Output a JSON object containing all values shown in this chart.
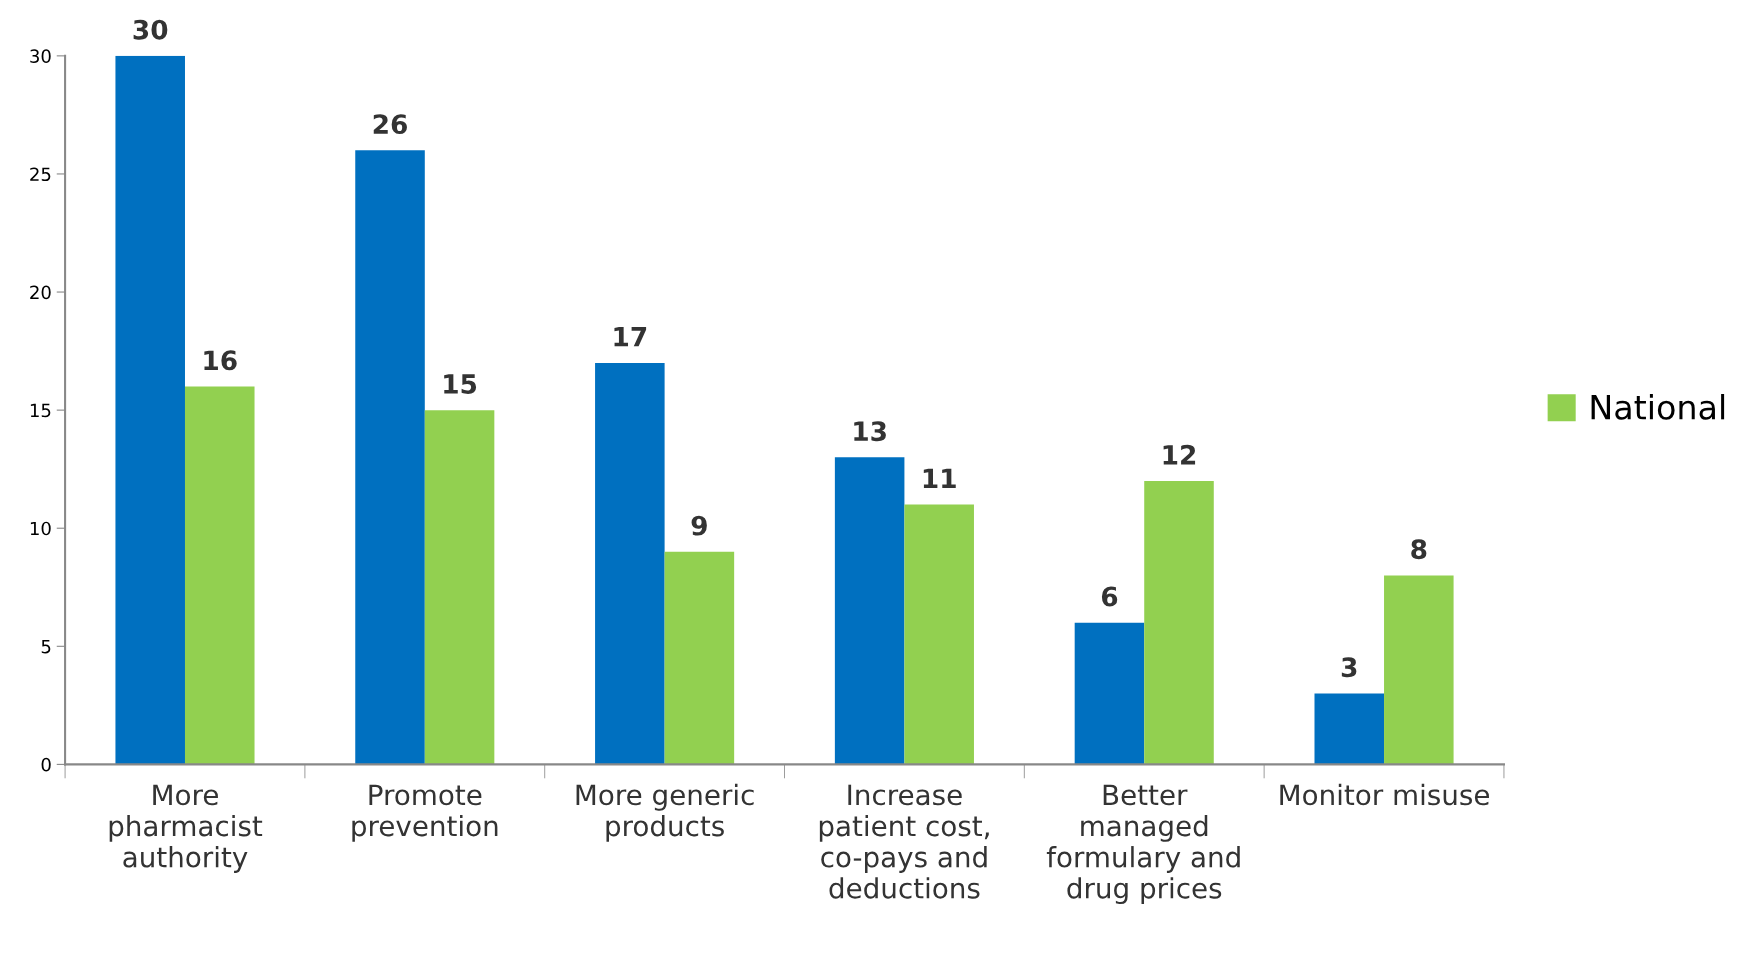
{
  "chart_data": {
    "type": "bar",
    "categories": [
      "More\npharmacist\nauthority",
      "Promote\nprevention",
      "More generic\nproducts",
      "Increase\npatient cost,\nco-pays and\ndeductions",
      "Better\nmanaged\nformulary and\ndrug prices",
      "Monitor misuse"
    ],
    "series": [
      {
        "color": "#0070c0",
        "values": [
          30,
          26,
          17,
          13,
          6,
          3
        ]
      },
      {
        "name": "National",
        "color": "#92d050",
        "values": [
          16,
          15,
          9,
          11,
          12,
          8
        ]
      }
    ],
    "ylim": [
      0,
      30
    ],
    "yticks": [
      0,
      5,
      10,
      15,
      20,
      25,
      30
    ],
    "grid": false,
    "legend": "right",
    "data_labels": true
  }
}
